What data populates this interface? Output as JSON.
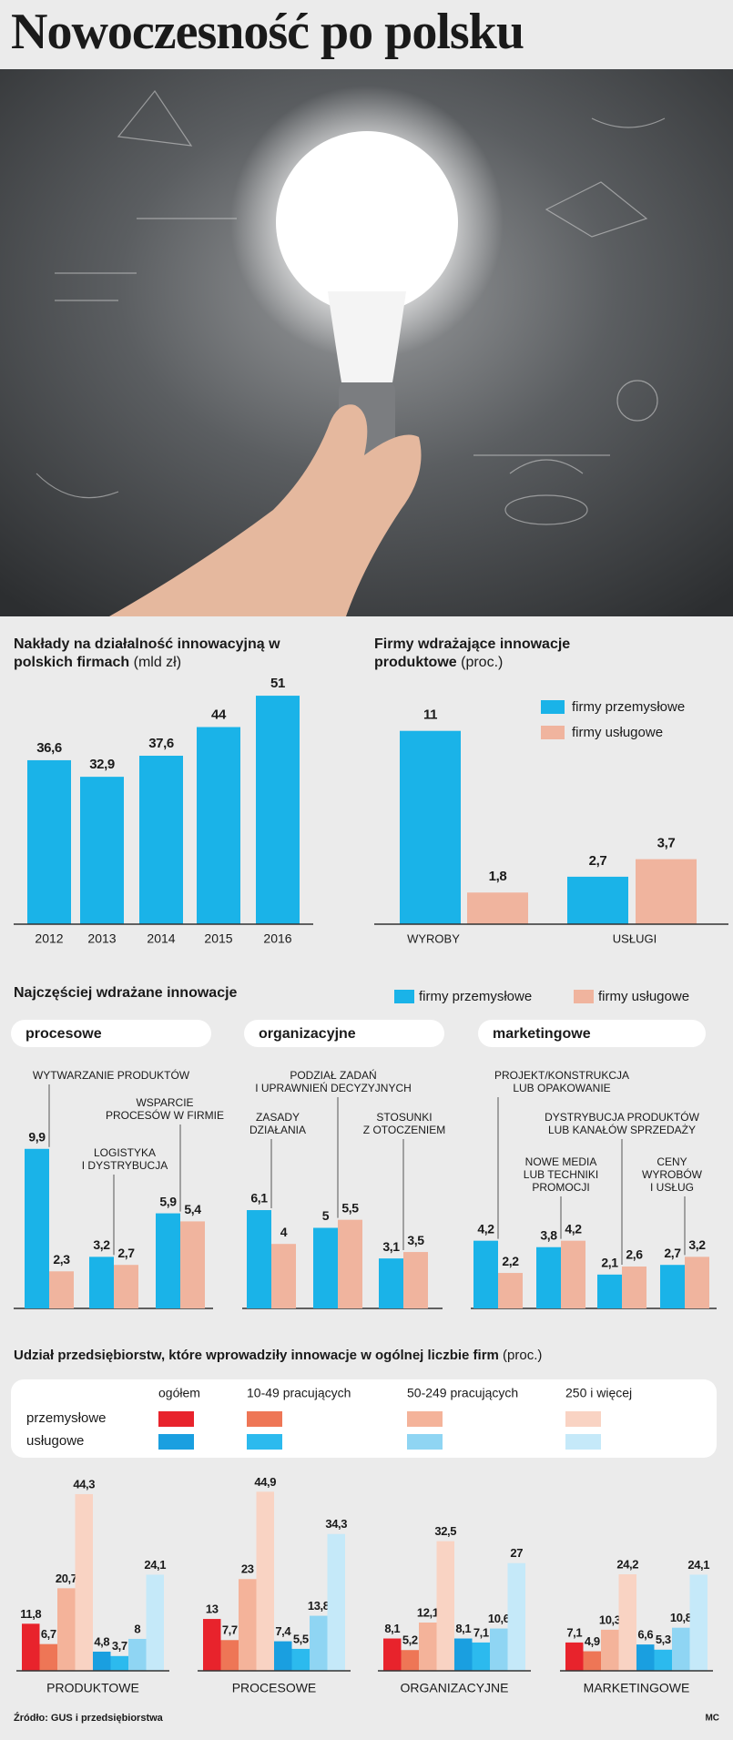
{
  "title": "Nowoczesność po polsku",
  "source": "Źródło: GUS i przedsiębiorstwa",
  "author": "MC",
  "chart_data": [
    {
      "type": "bar",
      "title": "Nakłady na działalność innowacyjną w polskich firmach",
      "unit": "(mld zł)",
      "categories": [
        "2012",
        "2013",
        "2014",
        "2015",
        "2016"
      ],
      "values": [
        36.6,
        32.9,
        37.6,
        44,
        51
      ],
      "value_labels": [
        "36,6",
        "32,9",
        "37,6",
        "44",
        "51"
      ],
      "color": "#1ab3e8"
    },
    {
      "type": "grouped-bar",
      "title": "Firmy wdrażające innowacje produktowe",
      "unit": "(proc.)",
      "categories": [
        "WYROBY",
        "USŁUGI"
      ],
      "series": [
        {
          "name": "firmy przemysłowe",
          "color": "#1ab3e8",
          "values": [
            11,
            2.7
          ],
          "value_labels": [
            "11",
            "2,7"
          ]
        },
        {
          "name": "firmy usługowe",
          "color": "#f0b49e",
          "values": [
            1.8,
            3.7
          ],
          "value_labels": [
            "1,8",
            "3,7"
          ]
        }
      ]
    },
    {
      "type": "panel-bar",
      "title": "Najczęściej wdrażane innowacje",
      "series": [
        {
          "name": "firmy przemysłowe",
          "color": "#1ab3e8"
        },
        {
          "name": "firmy usługowe",
          "color": "#f0b49e"
        }
      ],
      "groups": [
        {
          "name": "procesowe",
          "categories": [
            "WYTWARZANIE PRODUKTÓW",
            "LOGISTYKA\nI DYSTRYBUCJA",
            "WSPARCIE\nPROCESÓW W FIRMIE"
          ],
          "values": [
            [
              9.9,
              3.2,
              5.9
            ],
            [
              2.3,
              2.7,
              5.4
            ]
          ],
          "value_labels": [
            [
              "9,9",
              "3,2",
              "5,9"
            ],
            [
              "2,3",
              "2,7",
              "5,4"
            ]
          ]
        },
        {
          "name": "organizacyjne",
          "categories": [
            "ZASADY\nDZIAŁANIA",
            "PODZIAŁ ZADAŃ\nI UPRAWNIEŃ DECYZYJNYCH",
            "STOSUNKI\nZ OTOCZENIEM"
          ],
          "values": [
            [
              6.1,
              5,
              3.1
            ],
            [
              4,
              5.5,
              3.5
            ]
          ],
          "value_labels": [
            [
              "6,1",
              "5",
              "3,1"
            ],
            [
              "4",
              "5,5",
              "3,5"
            ]
          ]
        },
        {
          "name": "marketingowe",
          "categories": [
            "PROJEKT/KONSTRUKCJA\nLUB OPAKOWANIE",
            "NOWE MEDIA\nLUB TECHNIKI\nPROMOCJI",
            "DYSTRYBUCJA PRODUKTÓW\nLUB KANAŁÓW SPRZEDAŻY",
            "CENY\nWYROBÓW\nI USŁUG"
          ],
          "values": [
            [
              4.2,
              3.8,
              2.1,
              2.7
            ],
            [
              2.2,
              4.2,
              2.6,
              3.2
            ]
          ],
          "value_labels": [
            [
              "4,2",
              "3,8",
              "2,1",
              "2,7"
            ],
            [
              "2,2",
              "4,2",
              "2,6",
              "3,2"
            ]
          ]
        }
      ]
    },
    {
      "type": "cluster-bar",
      "title": "Udział przedsiębiorstw, które wprowadziły innowacje w ogólnej liczbie firm",
      "unit": "(proc.)",
      "categories": [
        "PRODUKTOWE",
        "PROCESOWE",
        "ORGANIZACYJNE",
        "MARKETINGOWE"
      ],
      "sizes": [
        "ogółem",
        "10-49 pracujących",
        "50-249 pracujących",
        "250 i więcej"
      ],
      "series": [
        {
          "name": "przemysłowe",
          "colors": [
            "#e8232c",
            "#ee7656",
            "#f4b39a",
            "#f9d3c3"
          ],
          "values": [
            [
              11.8,
              13,
              8.1,
              7.1
            ],
            [
              6.7,
              7.7,
              5.2,
              4.9
            ],
            [
              20.7,
              23,
              12.1,
              10.3
            ],
            [
              44.3,
              44.9,
              32.5,
              24.2
            ]
          ],
          "value_labels": [
            [
              "11,8",
              "13",
              "8,1",
              "7,1"
            ],
            [
              "6,7",
              "7,7",
              "5,2",
              "4,9"
            ],
            [
              "20,7",
              "23",
              "12,1",
              "10,3"
            ],
            [
              "44,3",
              "44,9",
              "32,5",
              "24,2"
            ]
          ]
        },
        {
          "name": "usługowe",
          "colors": [
            "#1a9fe0",
            "#2cbaee",
            "#8fd5f3",
            "#c5e9f9"
          ],
          "values": [
            [
              4.8,
              7.4,
              8.1,
              6.6
            ],
            [
              3.7,
              5.5,
              7.1,
              5.3
            ],
            [
              8,
              13.8,
              10.6,
              10.8
            ],
            [
              24.1,
              34.3,
              27,
              24.1
            ]
          ],
          "value_labels": [
            [
              "4,8",
              "7,4",
              "8,1",
              "6,6"
            ],
            [
              "3,7",
              "5,5",
              "7,1",
              "5,3"
            ],
            [
              "8",
              "13,8",
              "10,6",
              "10,8"
            ],
            [
              "24,1",
              "34,3",
              "27",
              "24,1"
            ]
          ]
        }
      ]
    }
  ]
}
